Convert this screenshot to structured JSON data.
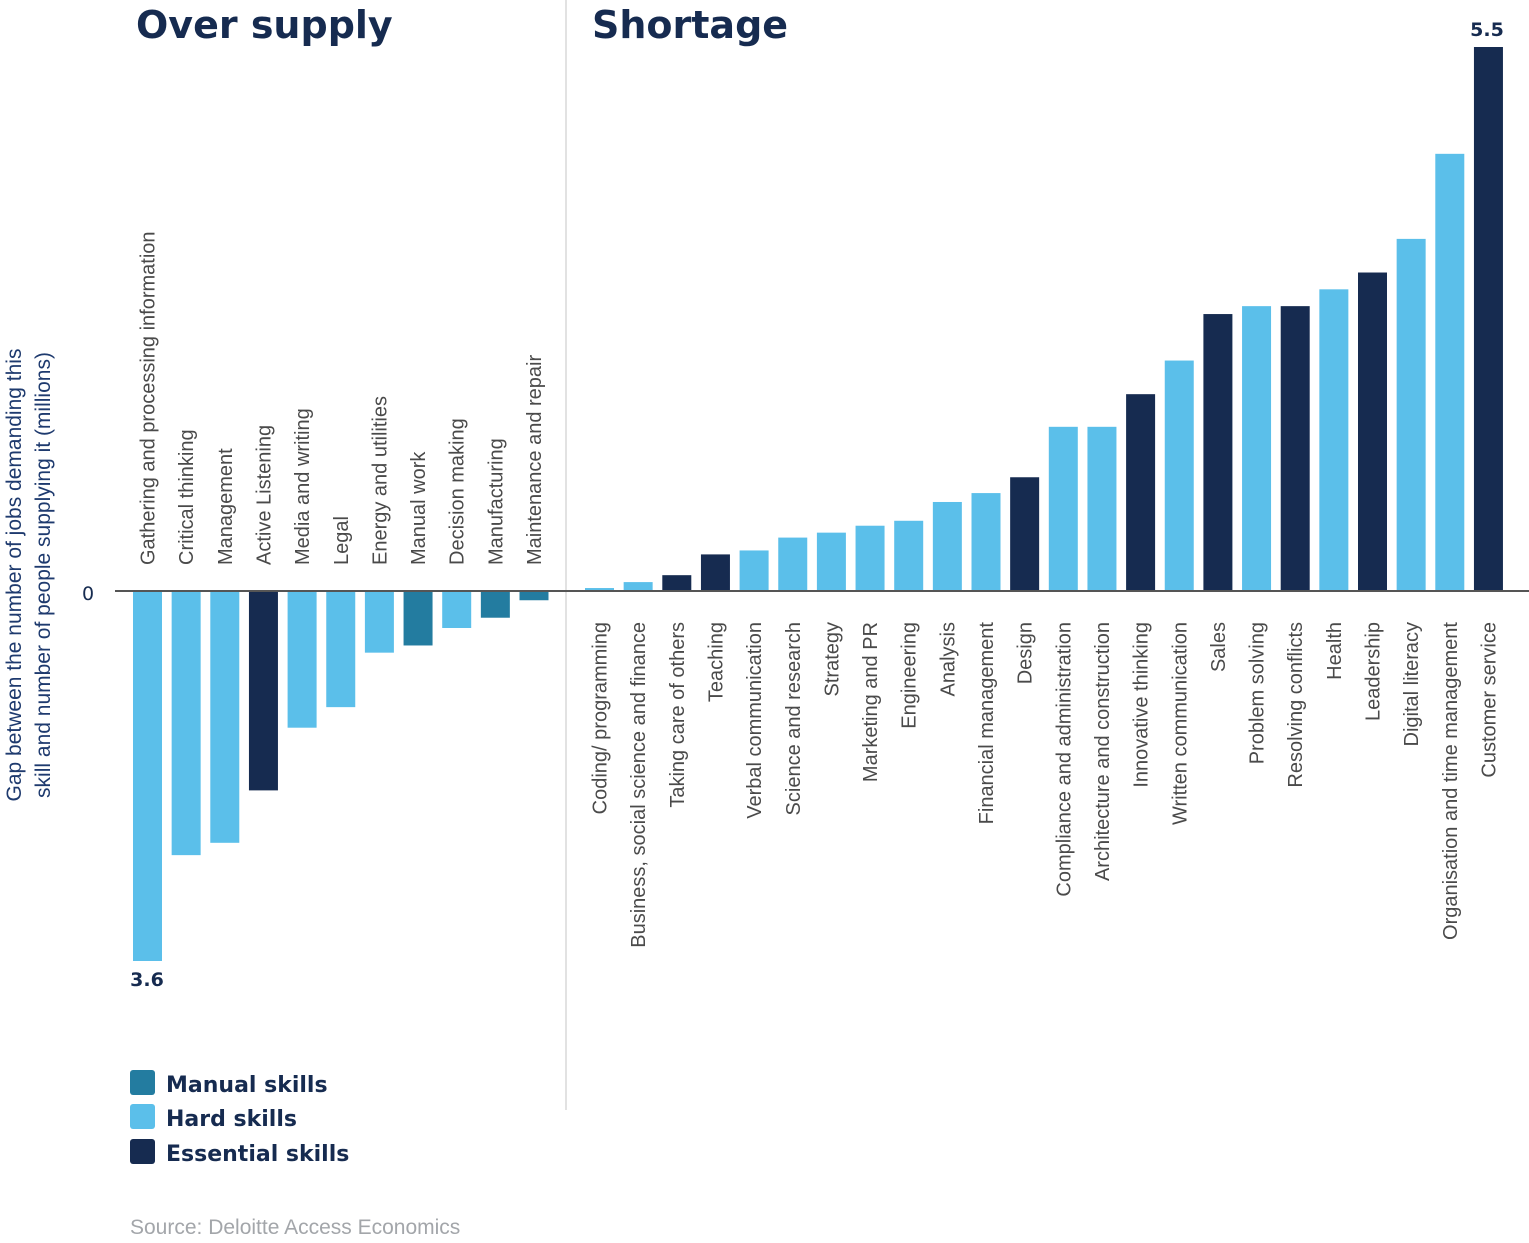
{
  "chart_data": {
    "type": "bar",
    "ylabel": "Gap between the number of jobs demanding this skill and number of people supplying it (millions)",
    "ylabel_lines": [
      "Gap between the number of jobs demanding this",
      "skill and number of people supplying it (millions)"
    ],
    "zero_label": "0",
    "grid": false,
    "legend_placement": "bottom-left",
    "source": "Source: Deloitte Access Economics",
    "colors": {
      "manual": "#237ca0",
      "hard": "#5bbfea",
      "essential": "#162b50"
    },
    "legend": [
      {
        "key": "manual",
        "label": "Manual skills"
      },
      {
        "key": "hard",
        "label": "Hard skills"
      },
      {
        "key": "essential",
        "label": "Essential skills"
      }
    ],
    "panels": [
      {
        "title": "Over supply",
        "data_label": "3.6",
        "categories": [
          "Gathering and processing information",
          "Critical thinking",
          "Management",
          "Active Listening",
          "Media and writing",
          "Legal",
          "Energy and utilities",
          "Manual work",
          "Decision making",
          "Manufacturing",
          "Maintenance and repair"
        ],
        "values": [
          -3.6,
          -2.57,
          -2.45,
          -1.94,
          -1.33,
          -1.13,
          -0.6,
          -0.53,
          -0.36,
          -0.26,
          -0.09
        ],
        "types": [
          "hard",
          "hard",
          "hard",
          "essential",
          "hard",
          "hard",
          "hard",
          "manual",
          "hard",
          "manual",
          "manual"
        ]
      },
      {
        "title": "Shortage",
        "data_label": "5.5",
        "categories": [
          "Coding/ programming",
          "Business, social science and finance",
          "Taking care of others",
          "Teaching",
          "Verbal communication",
          "Science and research",
          "Strategy",
          "Marketing and PR",
          "Engineering",
          "Analysis",
          "Financial management",
          "Design",
          "Compliance and administration",
          "Architecture and construction",
          "Innovative thinking",
          "Written communication",
          "Sales",
          "Problem solving",
          "Resolving conflicts",
          "Health",
          "Leadership",
          "Digital literacy",
          "Organisation and time management",
          "Customer service"
        ],
        "values": [
          0.03,
          0.09,
          0.16,
          0.37,
          0.41,
          0.54,
          0.59,
          0.66,
          0.71,
          0.9,
          0.99,
          1.15,
          1.66,
          1.66,
          1.99,
          2.33,
          2.8,
          2.88,
          2.88,
          3.05,
          3.22,
          3.56,
          4.42,
          5.5
        ],
        "types": [
          "hard",
          "hard",
          "essential",
          "essential",
          "hard",
          "hard",
          "hard",
          "hard",
          "hard",
          "hard",
          "hard",
          "essential",
          "hard",
          "hard",
          "essential",
          "hard",
          "essential",
          "hard",
          "essential",
          "hard",
          "essential",
          "hard",
          "hard",
          "essential"
        ]
      }
    ]
  }
}
